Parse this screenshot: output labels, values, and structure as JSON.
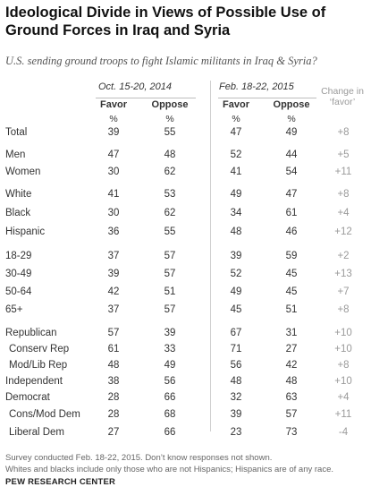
{
  "title": "Ideological Divide in Views of Possible Use of Ground Forces in Iraq and Syria",
  "subtitle": "U.S. sending ground troops to fight Islamic militants in Iraq & Syria?",
  "periods": [
    "Oct. 15-20, 2014",
    "Feb. 18-22, 2015"
  ],
  "columns": {
    "favor": "Favor",
    "oppose": "Oppose",
    "pct": "%"
  },
  "change_header": "Change in ‘favor’",
  "rows": [
    {
      "label": "Total",
      "f1": "39",
      "o1": "55",
      "f2": "47",
      "o2": "49",
      "change": "+8"
    },
    {
      "label": "Men",
      "f1": "47",
      "o1": "48",
      "f2": "52",
      "o2": "44",
      "change": "+5"
    },
    {
      "label": "Women",
      "f1": "30",
      "o1": "62",
      "f2": "41",
      "o2": "54",
      "change": "+11"
    },
    {
      "label": "White",
      "f1": "41",
      "o1": "53",
      "f2": "49",
      "o2": "47",
      "change": "+8"
    },
    {
      "label": "Black",
      "f1": "30",
      "o1": "62",
      "f2": "34",
      "o2": "61",
      "change": "+4"
    },
    {
      "label": "Hispanic",
      "f1": "36",
      "o1": "55",
      "f2": "48",
      "o2": "46",
      "change": "+12"
    },
    {
      "label": "18-29",
      "f1": "37",
      "o1": "57",
      "f2": "39",
      "o2": "59",
      "change": "+2"
    },
    {
      "label": "30-49",
      "f1": "39",
      "o1": "57",
      "f2": "52",
      "o2": "45",
      "change": "+13"
    },
    {
      "label": "50-64",
      "f1": "42",
      "o1": "51",
      "f2": "49",
      "o2": "45",
      "change": "+7"
    },
    {
      "label": "65+",
      "f1": "37",
      "o1": "57",
      "f2": "45",
      "o2": "51",
      "change": "+8"
    },
    {
      "label": "Republican",
      "f1": "57",
      "o1": "39",
      "f2": "67",
      "o2": "31",
      "change": "+10"
    },
    {
      "label": "Conserv Rep",
      "f1": "61",
      "o1": "33",
      "f2": "71",
      "o2": "27",
      "change": "+10"
    },
    {
      "label": "Mod/Lib Rep",
      "f1": "48",
      "o1": "49",
      "f2": "56",
      "o2": "42",
      "change": "+8"
    },
    {
      "label": "Independent",
      "f1": "38",
      "o1": "56",
      "f2": "48",
      "o2": "48",
      "change": "+10"
    },
    {
      "label": "Democrat",
      "f1": "28",
      "o1": "66",
      "f2": "32",
      "o2": "63",
      "change": "+4"
    },
    {
      "label": "Cons/Mod Dem",
      "f1": "28",
      "o1": "68",
      "f2": "39",
      "o2": "57",
      "change": "+11"
    },
    {
      "label": "Liberal Dem",
      "f1": "27",
      "o1": "66",
      "f2": "23",
      "o2": "73",
      "change": "-4"
    }
  ],
  "notes": [
    "Survey conducted Feb. 18-22, 2015. Don’t know responses not shown.",
    "Whites and blacks include only those who are not Hispanics; Hispanics are of any race."
  ],
  "source": "PEW RESEARCH CENTER"
}
